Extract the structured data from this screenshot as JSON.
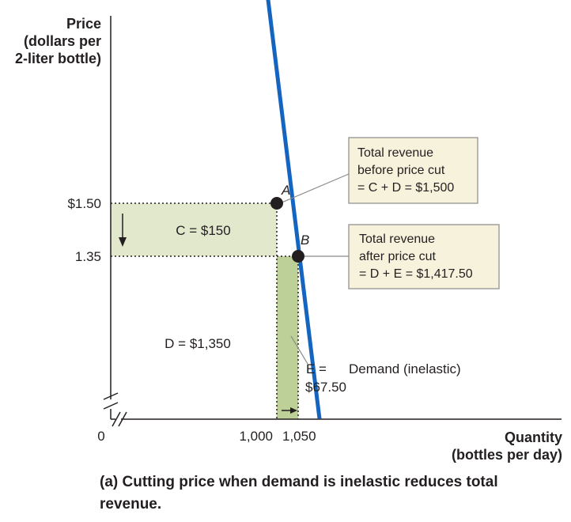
{
  "chart_data": {
    "type": "line",
    "y_axis_title": [
      "Price",
      "(dollars per",
      "2-liter bottle)"
    ],
    "x_axis_title": [
      "Quantity",
      "(bottles per day)"
    ],
    "origin_label": "0",
    "y_ticks": [
      {
        "value": 1.5,
        "label": "$1.50"
      },
      {
        "value": 1.35,
        "label": "1.35"
      }
    ],
    "x_ticks": [
      {
        "value": 1000,
        "label": "1,000"
      },
      {
        "value": 1050,
        "label": "1,050"
      }
    ],
    "series": [
      {
        "name": "Demand (inelastic)",
        "color": "#1565c0",
        "points": [
          {
            "x": 830,
            "y": 3.55
          },
          {
            "x": 1100,
            "y": 0.89
          }
        ]
      }
    ],
    "points": [
      {
        "label": "A",
        "x": 1000,
        "y": 1.5
      },
      {
        "label": "B",
        "x": 1050,
        "y": 1.35
      }
    ],
    "regions": [
      {
        "label": "C = $150",
        "value": 150,
        "x_range": [
          0,
          1000
        ],
        "y_range": [
          1.35,
          1.5
        ],
        "color": "#e1e8cc"
      },
      {
        "label": "D = $1,350",
        "value": 1350,
        "x_range": [
          0,
          1000
        ],
        "y_range": [
          0,
          1.35
        ]
      },
      {
        "label_line1": "E =",
        "label_line2": "$67.50",
        "value": 67.5,
        "x_range": [
          1000,
          1050
        ],
        "y_range": [
          0,
          1.35
        ],
        "color": "#bdd098"
      }
    ],
    "annotations": [
      {
        "id": "before",
        "lines": [
          "Total revenue",
          "before price cut",
          "= C + D = $1,500"
        ],
        "points_to": "A"
      },
      {
        "id": "after",
        "lines": [
          "Total revenue",
          "after price cut",
          "= D + E  = $1,417.50"
        ],
        "points_to": "B"
      }
    ],
    "caption": "(a) Cutting price when demand is inelastic reduces total revenue."
  }
}
